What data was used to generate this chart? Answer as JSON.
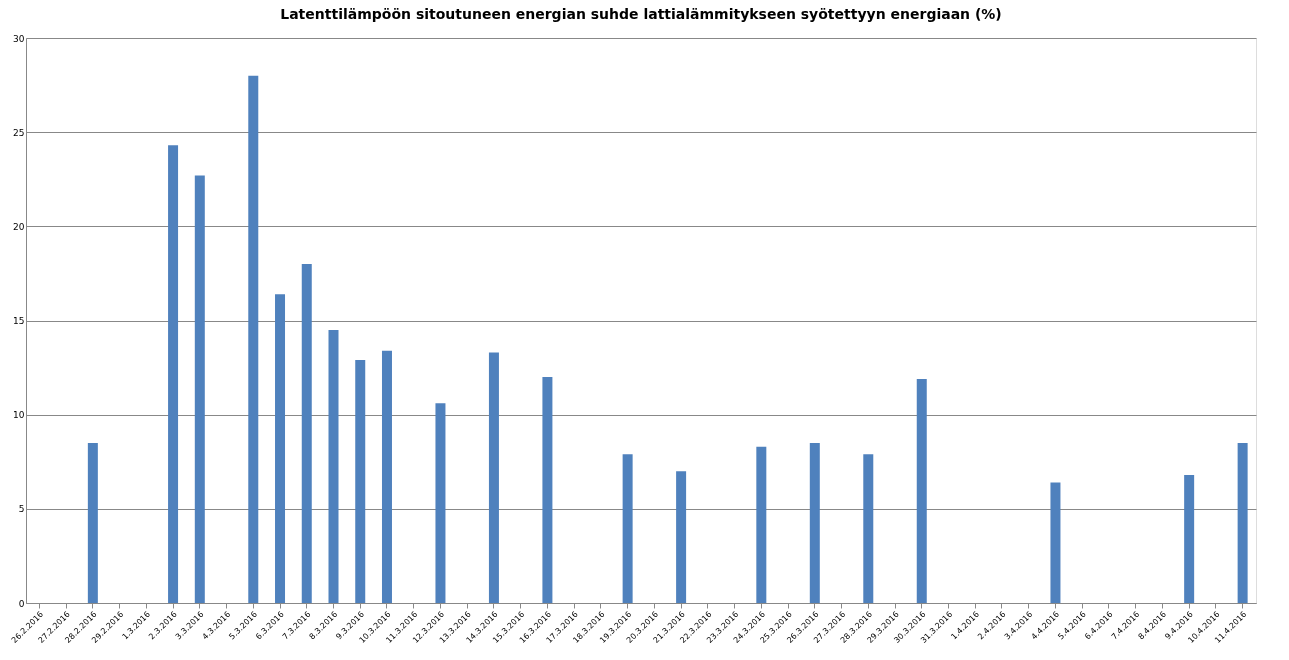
{
  "chart_data": {
    "type": "bar",
    "title": "Latenttilämpöön sitoutuneen energian suhde lattialämmitykseen syötettyyn energiaan (%)",
    "categories": [
      "26.2.2016",
      "27.2.2016",
      "28.2.2016",
      "29.2.2016",
      "1.3.2016",
      "2.3.2016",
      "3.3.2016",
      "4.3.2016",
      "5.3.2016",
      "6.3.2016",
      "7.3.2016",
      "8.3.2016",
      "9.3.2016",
      "10.3.2016",
      "11.3.2016",
      "12.3.2016",
      "13.3.2016",
      "14.3.2016",
      "15.3.2016",
      "16.3.2016",
      "17.3.2016",
      "18.3.2016",
      "19.3.2016",
      "20.3.2016",
      "21.3.2016",
      "22.3.2016",
      "23.3.2016",
      "24.3.2016",
      "25.3.2016",
      "26.3.2016",
      "27.3.2016",
      "28.3.2016",
      "29.3.2016",
      "30.3.2016",
      "31.3.2016",
      "1.4.2016",
      "2.4.2016",
      "3.4.2016",
      "4.4.2016",
      "5.4.2016",
      "6.4.2016",
      "7.4.2016",
      "8.4.2016",
      "9.4.2016",
      "10.4.2016",
      "11.4.2016"
    ],
    "values": [
      null,
      null,
      8.5,
      null,
      null,
      24.3,
      22.7,
      null,
      28.0,
      16.4,
      18.0,
      14.5,
      12.9,
      13.4,
      null,
      10.6,
      null,
      13.3,
      null,
      12.0,
      null,
      null,
      7.9,
      null,
      7.0,
      null,
      null,
      8.3,
      null,
      8.5,
      null,
      7.9,
      null,
      11.9,
      null,
      null,
      null,
      null,
      6.4,
      null,
      null,
      null,
      null,
      6.8,
      null,
      8.5
    ],
    "color": "#4f81bd",
    "ylim": [
      0,
      30
    ],
    "yticks": [
      0,
      5,
      10,
      15,
      20,
      25,
      30
    ],
    "grid": "y"
  }
}
